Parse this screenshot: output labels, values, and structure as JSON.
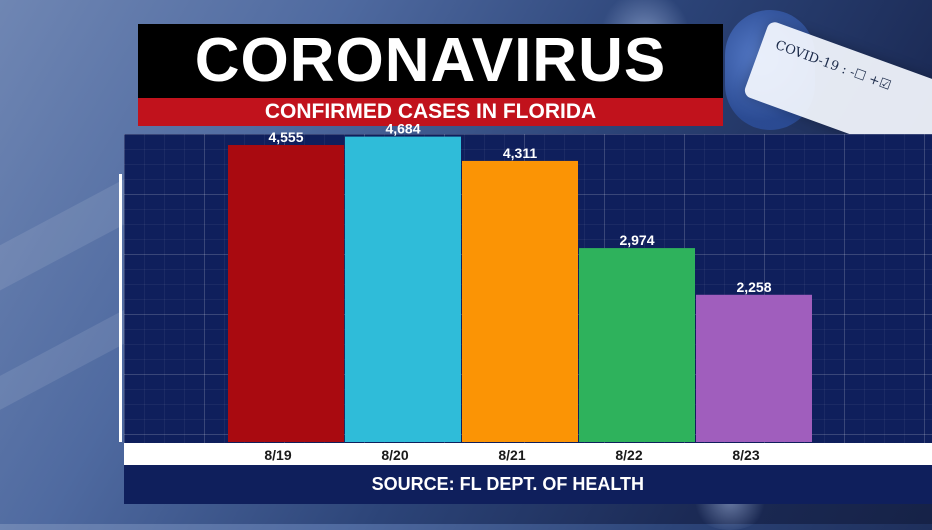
{
  "header": {
    "title": "CORONAVIRUS",
    "subtitle": "CONFIRMED CASES IN FLORIDA"
  },
  "decoration": {
    "tube_label": "COVID-19 : -☐ +☑"
  },
  "source": "SOURCE: FL DEPT. OF HEALTH",
  "chart_data": {
    "type": "bar",
    "categories": [
      "8/19",
      "8/20",
      "8/21",
      "8/22",
      "8/23"
    ],
    "values": [
      4555,
      4684,
      4311,
      2974,
      2258
    ],
    "value_labels": [
      "4,555",
      "4,684",
      "4,311",
      "2,974",
      "2,258"
    ],
    "colors": [
      "#a90a10",
      "#2fbcd9",
      "#fb9405",
      "#2eb25c",
      "#a05ebd"
    ],
    "title": "CONFIRMED CASES IN FLORIDA",
    "xlabel": "",
    "ylabel": "",
    "ylim": [
      0,
      5000
    ],
    "grid": true,
    "legend": "none"
  }
}
